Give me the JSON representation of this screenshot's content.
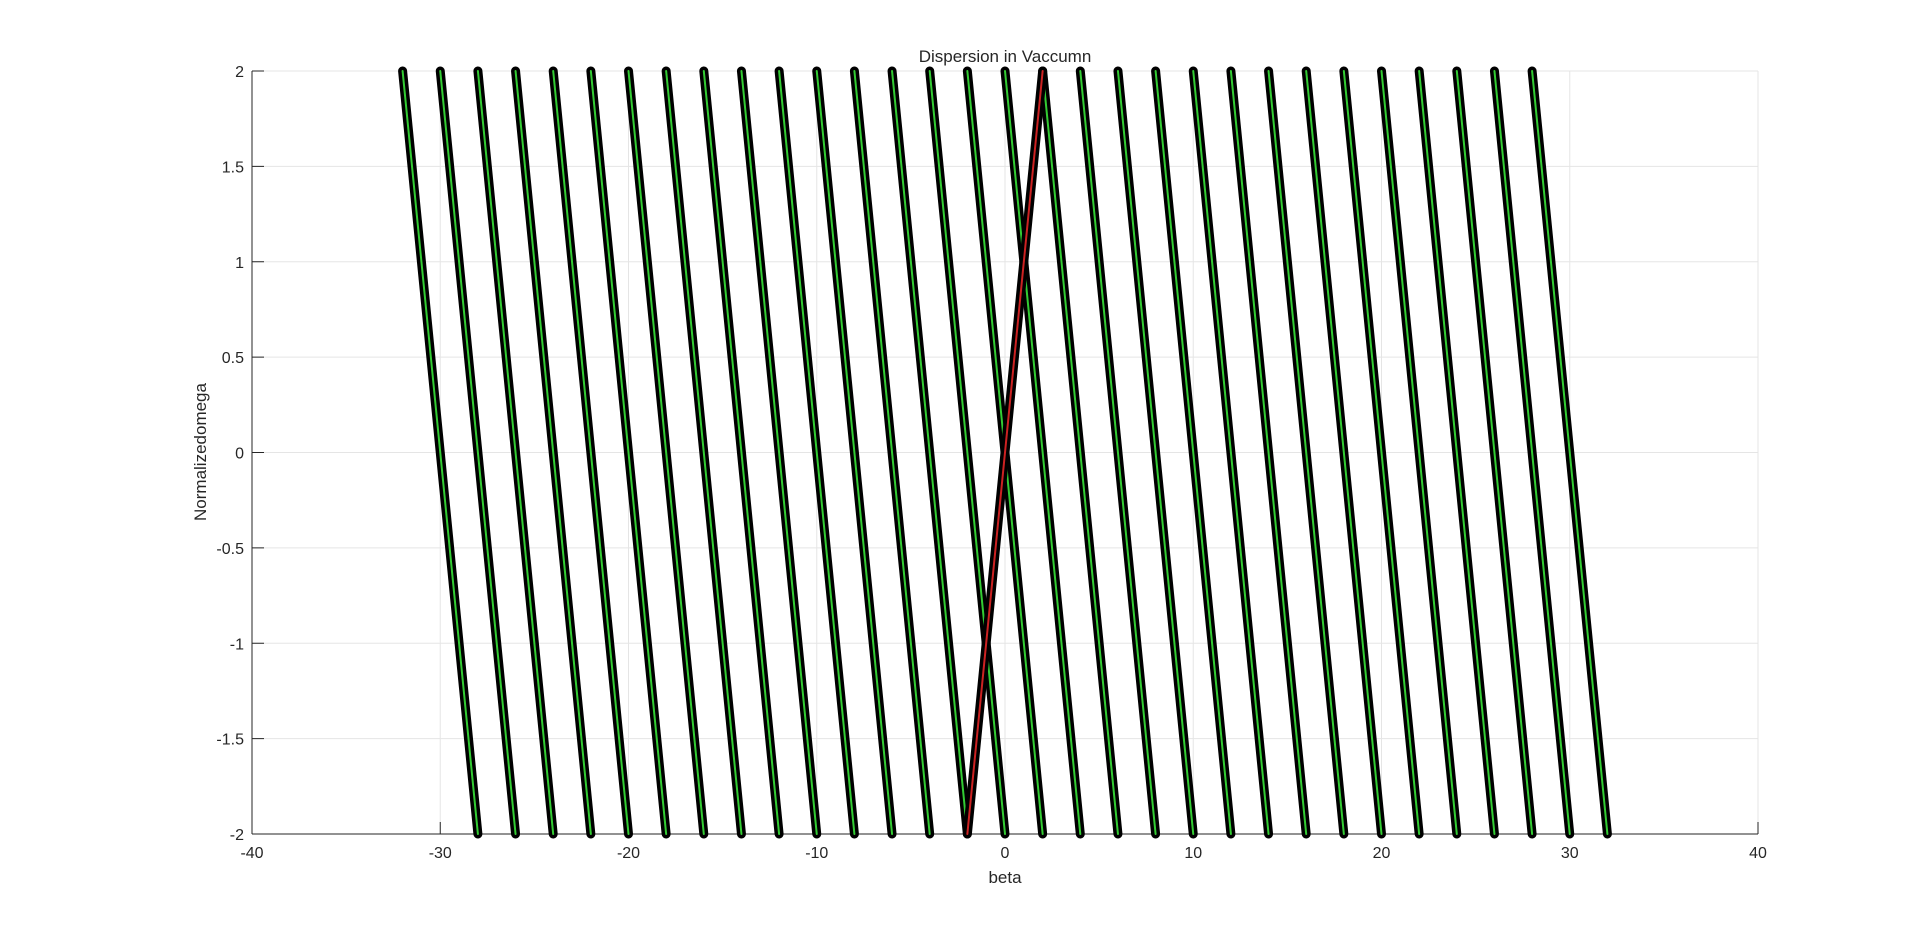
{
  "chart_data": {
    "type": "line",
    "title": "Dispersion in Vaccumn",
    "xlabel": "beta",
    "ylabel": "Normalizedomega",
    "xlim": [
      -40,
      40
    ],
    "ylim": [
      -2,
      2
    ],
    "grid": true,
    "x_ticks": [
      "-40",
      "-30",
      "-20",
      "-10",
      "0",
      "10",
      "20",
      "30",
      "40"
    ],
    "y_ticks": [
      "-2",
      "-1.5",
      "-1",
      "-0.5",
      "0",
      "0.5",
      "1",
      "1.5",
      "2"
    ],
    "colors": {
      "black_band": "#000000",
      "green_line": "#33cc33",
      "red_line": "#cc2222",
      "grid": "#e5e5e5",
      "axis": "#262626"
    },
    "series": [
      {
        "style": "thick black with green center",
        "lines": [
          {
            "x": [
              -32,
              -28
            ],
            "y": [
              2,
              -2
            ]
          },
          {
            "x": [
              -30,
              -26
            ],
            "y": [
              2,
              -2
            ]
          },
          {
            "x": [
              -28,
              -24
            ],
            "y": [
              2,
              -2
            ]
          },
          {
            "x": [
              -26,
              -22
            ],
            "y": [
              2,
              -2
            ]
          },
          {
            "x": [
              -24,
              -20
            ],
            "y": [
              2,
              -2
            ]
          },
          {
            "x": [
              -22,
              -18
            ],
            "y": [
              2,
              -2
            ]
          },
          {
            "x": [
              -20,
              -16
            ],
            "y": [
              2,
              -2
            ]
          },
          {
            "x": [
              -18,
              -14
            ],
            "y": [
              2,
              -2
            ]
          },
          {
            "x": [
              -16,
              -12
            ],
            "y": [
              2,
              -2
            ]
          },
          {
            "x": [
              -14,
              -10
            ],
            "y": [
              2,
              -2
            ]
          },
          {
            "x": [
              -12,
              -8
            ],
            "y": [
              2,
              -2
            ]
          },
          {
            "x": [
              -10,
              -6
            ],
            "y": [
              2,
              -2
            ]
          },
          {
            "x": [
              -8,
              -4
            ],
            "y": [
              2,
              -2
            ]
          },
          {
            "x": [
              -6,
              -2
            ],
            "y": [
              2,
              -2
            ]
          },
          {
            "x": [
              -4,
              0
            ],
            "y": [
              2,
              -2
            ]
          },
          {
            "x": [
              -2,
              2
            ],
            "y": [
              2,
              -2
            ]
          },
          {
            "x": [
              0,
              4
            ],
            "y": [
              2,
              -2
            ]
          },
          {
            "x": [
              2,
              6
            ],
            "y": [
              2,
              -2
            ]
          },
          {
            "x": [
              4,
              8
            ],
            "y": [
              2,
              -2
            ]
          },
          {
            "x": [
              6,
              10
            ],
            "y": [
              2,
              -2
            ]
          },
          {
            "x": [
              8,
              12
            ],
            "y": [
              2,
              -2
            ]
          },
          {
            "x": [
              10,
              14
            ],
            "y": [
              2,
              -2
            ]
          },
          {
            "x": [
              12,
              16
            ],
            "y": [
              2,
              -2
            ]
          },
          {
            "x": [
              14,
              18
            ],
            "y": [
              2,
              -2
            ]
          },
          {
            "x": [
              16,
              20
            ],
            "y": [
              2,
              -2
            ]
          },
          {
            "x": [
              18,
              22
            ],
            "y": [
              2,
              -2
            ]
          },
          {
            "x": [
              20,
              24
            ],
            "y": [
              2,
              -2
            ]
          },
          {
            "x": [
              22,
              26
            ],
            "y": [
              2,
              -2
            ]
          },
          {
            "x": [
              24,
              28
            ],
            "y": [
              2,
              -2
            ]
          },
          {
            "x": [
              26,
              30
            ],
            "y": [
              2,
              -2
            ]
          },
          {
            "x": [
              28,
              32
            ],
            "y": [
              2,
              -2
            ]
          }
        ]
      },
      {
        "style": "thick black with red center",
        "lines": [
          {
            "x": [
              -2,
              2
            ],
            "y": [
              -2,
              2
            ]
          }
        ]
      }
    ]
  }
}
